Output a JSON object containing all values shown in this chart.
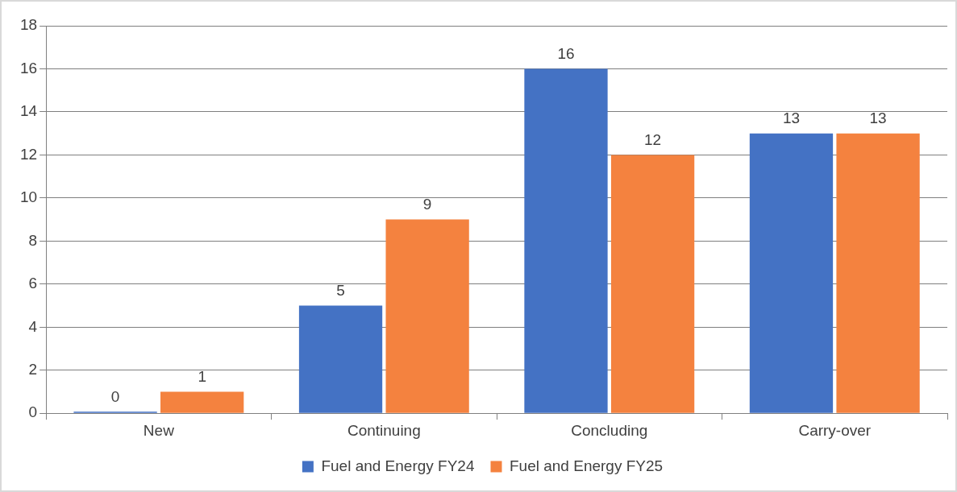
{
  "chart_data": {
    "type": "bar",
    "categories": [
      "New",
      "Continuing",
      "Concluding",
      "Carry-over"
    ],
    "series": [
      {
        "name": "Fuel and Energy FY24",
        "color": "#4472c4",
        "values": [
          0,
          5,
          16,
          13
        ]
      },
      {
        "name": "Fuel and Energy FY25",
        "color": "#f4823f",
        "values": [
          1,
          9,
          12,
          13
        ]
      }
    ],
    "ylim": [
      0,
      18
    ],
    "yticks": [
      0,
      2,
      4,
      6,
      8,
      10,
      12,
      14,
      16,
      18
    ],
    "grid": "y",
    "legend": "bottom",
    "data_labels": true
  }
}
